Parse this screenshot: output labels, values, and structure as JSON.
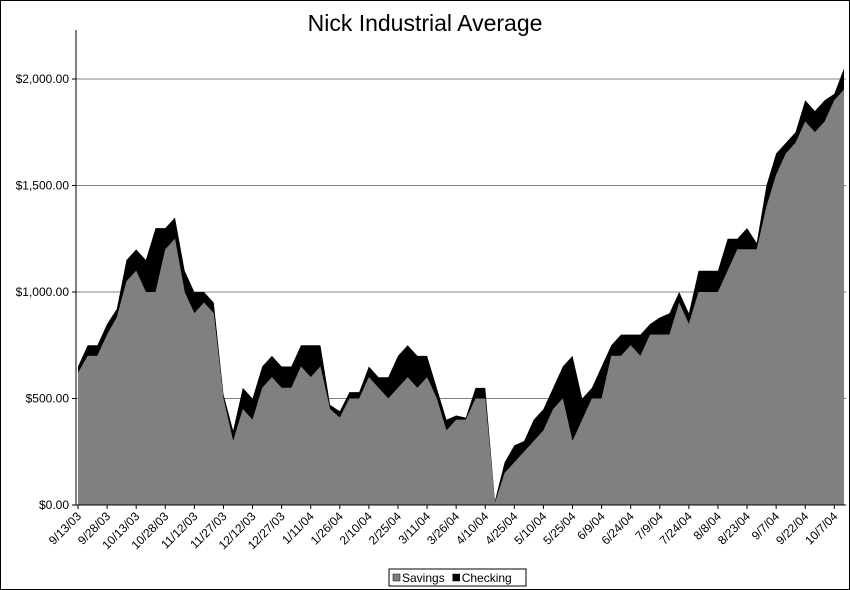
{
  "chart_data": {
    "type": "stacked_area",
    "title": "Nick Industrial Average",
    "categories": [
      "9/13/03",
      null,
      null,
      "9/28/03",
      null,
      null,
      "10/13/03",
      null,
      null,
      "10/28/03",
      null,
      null,
      "11/12/03",
      null,
      null,
      "11/27/03",
      null,
      null,
      "12/12/03",
      null,
      null,
      "12/27/03",
      null,
      null,
      "1/11/04",
      null,
      null,
      "1/26/04",
      null,
      null,
      "2/10/04",
      null,
      null,
      "2/25/04",
      null,
      null,
      "3/11/04",
      null,
      null,
      "3/26/04",
      null,
      null,
      "4/10/04",
      null,
      null,
      "4/25/04",
      null,
      null,
      "5/10/04",
      null,
      null,
      "5/25/04",
      null,
      null,
      "6/9/04",
      null,
      null,
      "6/24/04",
      null,
      null,
      "7/9/04",
      null,
      null,
      "7/24/04",
      null,
      null,
      "8/8/04",
      null,
      null,
      "8/23/04",
      null,
      null,
      "9/7/04",
      null,
      null,
      "9/22/04",
      null,
      null,
      "10/7/04",
      null
    ],
    "series": [
      {
        "name": "Savings",
        "color": "#808080",
        "values": [
          620,
          700,
          700,
          800,
          880,
          1050,
          1100,
          1000,
          1000,
          1200,
          1250,
          1000,
          900,
          950,
          900,
          500,
          300,
          450,
          400,
          550,
          600,
          550,
          550,
          650,
          600,
          650,
          450,
          410,
          500,
          500,
          600,
          550,
          500,
          550,
          600,
          550,
          600,
          500,
          350,
          400,
          400,
          500,
          500,
          10,
          150,
          200,
          250,
          300,
          350,
          450,
          500,
          300,
          400,
          500,
          500,
          700,
          700,
          750,
          700,
          800,
          800,
          800,
          950,
          850,
          1000,
          1000,
          1000,
          1100,
          1200,
          1200,
          1200,
          1400,
          1550,
          1650,
          1700,
          1800,
          1750,
          1800,
          1900,
          1950
        ]
      },
      {
        "name": "Checking",
        "color": "#000000",
        "values": [
          30,
          50,
          50,
          50,
          40,
          100,
          100,
          150,
          300,
          100,
          100,
          100,
          100,
          50,
          50,
          20,
          50,
          100,
          100,
          100,
          100,
          100,
          100,
          100,
          150,
          100,
          20,
          30,
          30,
          30,
          50,
          50,
          100,
          150,
          150,
          150,
          100,
          50,
          50,
          20,
          10,
          50,
          50,
          10,
          50,
          80,
          50,
          100,
          100,
          100,
          150,
          400,
          100,
          50,
          150,
          50,
          100,
          50,
          100,
          50,
          80,
          100,
          50,
          50,
          100,
          100,
          100,
          150,
          50,
          100,
          30,
          100,
          100,
          50,
          50,
          100,
          100,
          100,
          30,
          100
        ]
      }
    ],
    "ylim": [
      0,
      2230
    ],
    "yticks": [
      {
        "value": 0,
        "label": "$0.00"
      },
      {
        "value": 500,
        "label": "$500.00"
      },
      {
        "value": 1000,
        "label": "$1,000.00"
      },
      {
        "value": 1500,
        "label": "$1,500.00"
      },
      {
        "value": 2000,
        "label": "$2,000.00"
      }
    ],
    "grid": true
  }
}
